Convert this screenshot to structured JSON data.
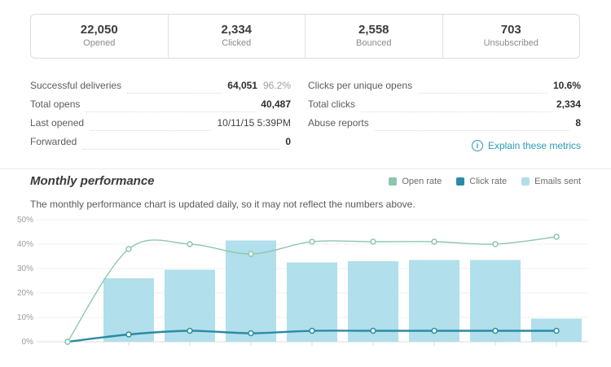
{
  "summary_cards": [
    {
      "value": "22,050",
      "label": "Opened"
    },
    {
      "value": "2,334",
      "label": "Clicked"
    },
    {
      "value": "2,558",
      "label": "Bounced"
    },
    {
      "value": "703",
      "label": "Unsubscribed"
    }
  ],
  "metrics": {
    "left": [
      {
        "label": "Successful deliveries",
        "value": "64,051",
        "sub": "96.2%"
      },
      {
        "label": "Total opens",
        "value": "40,487"
      },
      {
        "label": "Last opened",
        "value": "10/11/15 5:39PM"
      },
      {
        "label": "Forwarded",
        "value": "0"
      }
    ],
    "right": [
      {
        "label": "Clicks per unique opens",
        "value": "10.6%"
      },
      {
        "label": "Total clicks",
        "value": "2,334"
      },
      {
        "label": "Abuse reports",
        "value": "8"
      }
    ],
    "explain_link_label": "Explain these metrics",
    "info_icon_char": "i"
  },
  "monthly": {
    "title": "Monthly performance",
    "subtitle": "The monthly performance chart is updated daily, so it may not reflect the numbers above.",
    "legend": [
      {
        "label": "Open rate",
        "color": "#8cc6af"
      },
      {
        "label": "Click rate",
        "color": "#2b8ba4"
      },
      {
        "label": "Emails sent",
        "color": "#b1dfeb"
      }
    ]
  },
  "chart_data": {
    "type": "bar",
    "title": "Monthly performance",
    "categories": [
      "",
      "",
      "",
      "",
      "",
      "",
      "",
      "",
      ""
    ],
    "x_axis_labels_visible": false,
    "ylim": [
      0,
      50
    ],
    "yticks": [
      "0%",
      "10%",
      "20%",
      "30%",
      "40%",
      "50%"
    ],
    "grid": true,
    "legend_position": "top-right",
    "series": [
      {
        "name": "Emails sent",
        "kind": "bar",
        "color": "#b1dfeb",
        "values": [
          null,
          26,
          29.5,
          41.5,
          32.5,
          33,
          33.5,
          33.5,
          9.5
        ]
      },
      {
        "name": "Open rate",
        "kind": "line",
        "color": "#8cc6af",
        "values": [
          0,
          38,
          40,
          36,
          41,
          41,
          41,
          40,
          43
        ]
      },
      {
        "name": "Click rate",
        "kind": "line",
        "color": "#2b8ba4",
        "values": [
          0,
          3,
          4.5,
          3.5,
          4.5,
          4.5,
          4.5,
          4.5,
          4.5
        ]
      }
    ]
  },
  "colors": {
    "link_teal": "#2c9ab7",
    "bar_fill": "#b1dfeb",
    "open_line": "#8cc6af",
    "click_line": "#2b8ba4"
  }
}
